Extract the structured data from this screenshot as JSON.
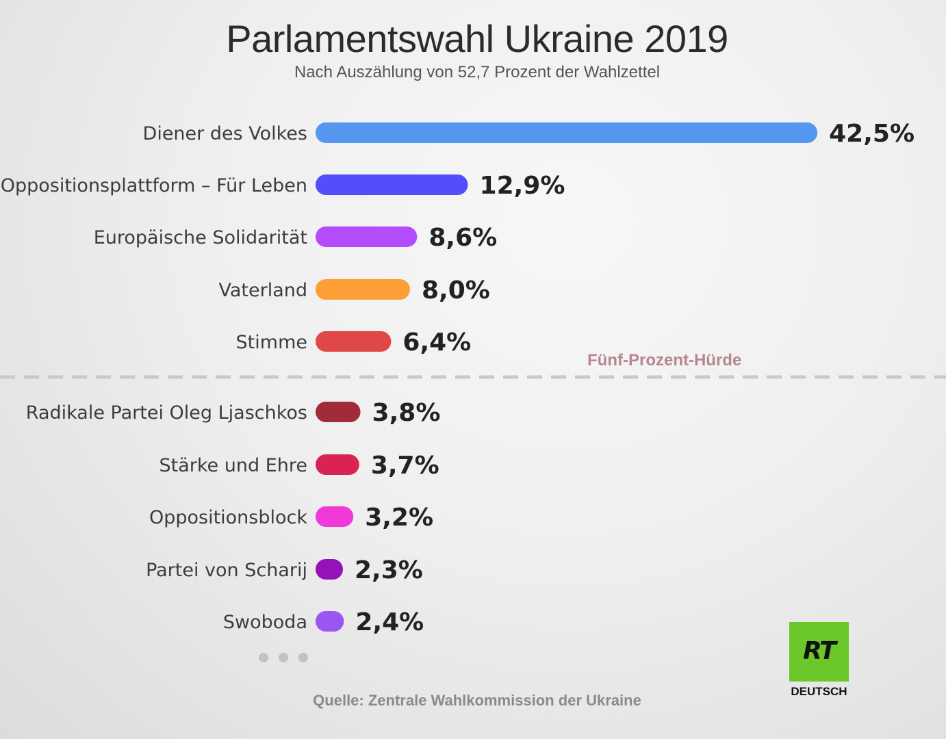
{
  "chart_data": {
    "type": "bar",
    "orientation": "horizontal",
    "title": "Parlamentswahl Ukraine 2019",
    "subtitle": "Nach Auszählung von 52,7 Prozent der Wahlzettel",
    "categories": [
      "Diener des Volkes",
      "Oppositionsplattform – Für Leben",
      "Europäische Solidarität",
      "Vaterland",
      "Stimme",
      "Radikale Partei Oleg Ljaschkos",
      "Stärke und Ehre",
      "Oppositionsblock",
      "Partei von Scharij",
      "Swoboda"
    ],
    "values": [
      42.5,
      12.9,
      8.6,
      8.0,
      6.4,
      3.8,
      3.7,
      3.2,
      2.3,
      2.4
    ],
    "value_labels": [
      "42,5%",
      "12,9%",
      "8,6%",
      "8,0%",
      "6,4%",
      "3,8%",
      "3,7%",
      "3,2%",
      "2,3%",
      "2,4%"
    ],
    "colors": [
      "#5596f0",
      "#524ffa",
      "#b34dfb",
      "#fd9e36",
      "#e04848",
      "#a02b3a",
      "#d92352",
      "#f03ad8",
      "#9512b8",
      "#9b55f3"
    ],
    "threshold": {
      "value": 5,
      "label": "Fünf-Prozent-Hürde",
      "color": "#cfc7c2"
    },
    "source": "Quelle: Zentrale Wahlkommission der Ukraine",
    "grid": false,
    "legend": "none"
  },
  "logo": {
    "mark": "RT",
    "subtitle": "DEUTSCH",
    "color": "#6cc82a"
  },
  "more_indicator": "three-dots"
}
